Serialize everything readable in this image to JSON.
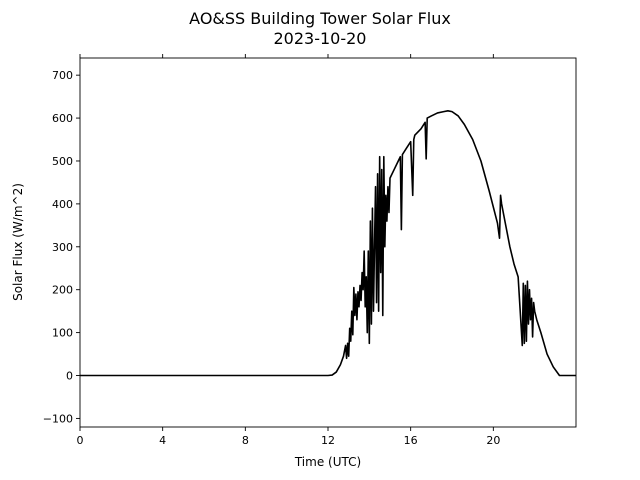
{
  "chart_data": {
    "type": "line",
    "title": "AO&SS Building Tower Solar Flux",
    "subtitle": "2023-10-20",
    "xlabel": "Time (UTC)",
    "ylabel": "Solar Flux (W/m^2)",
    "xlim": [
      0,
      24
    ],
    "ylim": [
      -120,
      740
    ],
    "x_ticks": [
      0,
      4,
      8,
      12,
      16,
      20
    ],
    "x_tick_labels": [
      "0",
      "4",
      "8",
      "12",
      "16",
      "20"
    ],
    "y_ticks": [
      -100,
      0,
      100,
      200,
      300,
      400,
      500,
      600,
      700
    ],
    "y_tick_labels": [
      "−100",
      "0",
      "100",
      "200",
      "300",
      "400",
      "500",
      "600",
      "700"
    ],
    "grid": false,
    "series": [
      {
        "color": "#000000",
        "x": [
          0,
          12.0,
          12.2,
          12.4,
          12.6,
          12.75,
          12.85,
          12.9,
          12.95,
          13.0,
          13.05,
          13.1,
          13.15,
          13.2,
          13.25,
          13.3,
          13.35,
          13.4,
          13.45,
          13.5,
          13.55,
          13.6,
          13.65,
          13.7,
          13.75,
          13.8,
          13.85,
          13.9,
          13.95,
          14.0,
          14.05,
          14.1,
          14.15,
          14.2,
          14.25,
          14.3,
          14.35,
          14.4,
          14.45,
          14.5,
          14.55,
          14.6,
          14.65,
          14.7,
          14.75,
          14.8,
          14.85,
          14.9,
          14.95,
          15.0,
          15.2,
          15.4,
          15.5,
          15.55,
          15.6,
          15.8,
          16.0,
          16.1,
          16.15,
          16.2,
          16.3,
          16.5,
          16.7,
          16.75,
          16.8,
          17.0,
          17.3,
          17.6,
          17.8,
          18.0,
          18.3,
          18.6,
          19.0,
          19.4,
          19.8,
          20.2,
          20.3,
          20.35,
          20.4,
          20.6,
          20.8,
          21.0,
          21.2,
          21.4,
          21.45,
          21.5,
          21.55,
          21.6,
          21.65,
          21.7,
          21.75,
          21.8,
          21.85,
          21.9,
          21.95,
          22.0,
          22.1,
          22.3,
          22.6,
          22.9,
          23.2,
          24.0
        ],
        "y": [
          0,
          0,
          1,
          8,
          25,
          45,
          70,
          40,
          75,
          45,
          110,
          80,
          150,
          95,
          205,
          140,
          190,
          130,
          195,
          160,
          210,
          175,
          240,
          200,
          290,
          160,
          230,
          100,
          290,
          75,
          360,
          120,
          390,
          150,
          300,
          440,
          170,
          470,
          150,
          510,
          240,
          480,
          140,
          510,
          300,
          420,
          360,
          440,
          380,
          460,
          480,
          500,
          510,
          340,
          515,
          530,
          545,
          420,
          550,
          560,
          565,
          575,
          590,
          505,
          600,
          605,
          612,
          615,
          617,
          615,
          605,
          585,
          550,
          500,
          430,
          355,
          320,
          420,
          400,
          350,
          300,
          260,
          230,
          70,
          215,
          75,
          210,
          80,
          220,
          120,
          200,
          130,
          180,
          90,
          170,
          150,
          130,
          100,
          50,
          20,
          0,
          0
        ]
      }
    ]
  }
}
